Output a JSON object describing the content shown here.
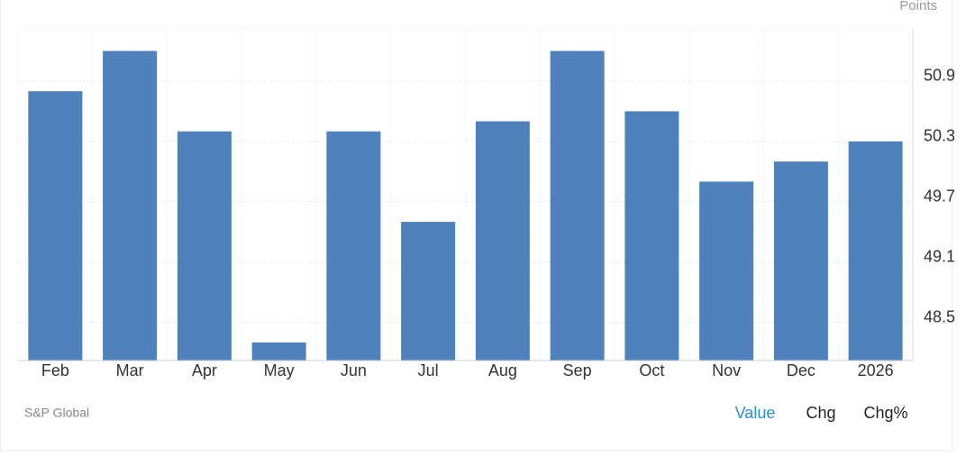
{
  "chart_data": {
    "type": "bar",
    "y_axis_label": "Points",
    "categories": [
      "Feb",
      "Mar",
      "Apr",
      "May",
      "Jun",
      "Jul",
      "Aug",
      "Sep",
      "Oct",
      "Nov",
      "Dec",
      "2026"
    ],
    "values": [
      50.8,
      51.2,
      50.4,
      48.3,
      50.4,
      49.5,
      50.5,
      51.2,
      50.6,
      49.9,
      50.1,
      50.3
    ],
    "color": "#4f81bd",
    "ylim": [
      48.12,
      51.42
    ],
    "yticks": [
      48.5,
      49.1,
      49.7,
      50.3,
      50.9
    ],
    "grid": true
  },
  "source": "S&P Global",
  "controls": [
    "Value",
    "Chg",
    "Chg%"
  ]
}
